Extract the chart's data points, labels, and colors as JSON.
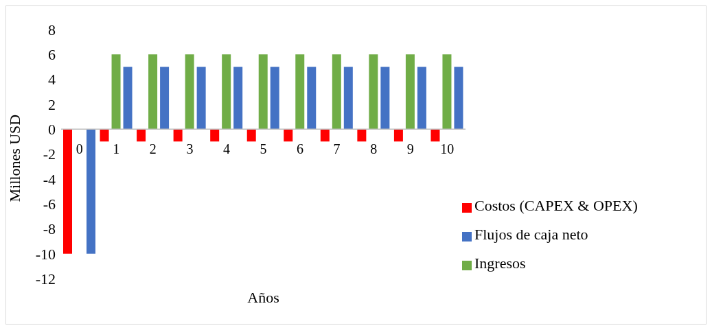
{
  "chart_data": {
    "type": "bar",
    "xlabel": "Años",
    "ylabel": "Millones USD",
    "categories": [
      "0",
      "1",
      "2",
      "3",
      "4",
      "5",
      "6",
      "7",
      "8",
      "9",
      "10"
    ],
    "series": [
      {
        "name": "Costos (CAPEX & OPEX)",
        "color": "#ff0000",
        "values": [
          -10,
          -1,
          -1,
          -1,
          -1,
          -1,
          -1,
          -1,
          -1,
          -1,
          -1
        ]
      },
      {
        "name": "Ingresos",
        "color": "#70ad47",
        "values": [
          0,
          6,
          6,
          6,
          6,
          6,
          6,
          6,
          6,
          6,
          6
        ]
      },
      {
        "name": "Flujos de caja neto",
        "color": "#4472c4",
        "values": [
          -10,
          5,
          5,
          5,
          5,
          5,
          5,
          5,
          5,
          5,
          5
        ]
      }
    ],
    "ylim": [
      -12,
      8
    ],
    "yticks": [
      -12,
      -10,
      -8,
      -6,
      -4,
      -2,
      0,
      2,
      4,
      6,
      8
    ],
    "grid": false,
    "legend": "right"
  }
}
